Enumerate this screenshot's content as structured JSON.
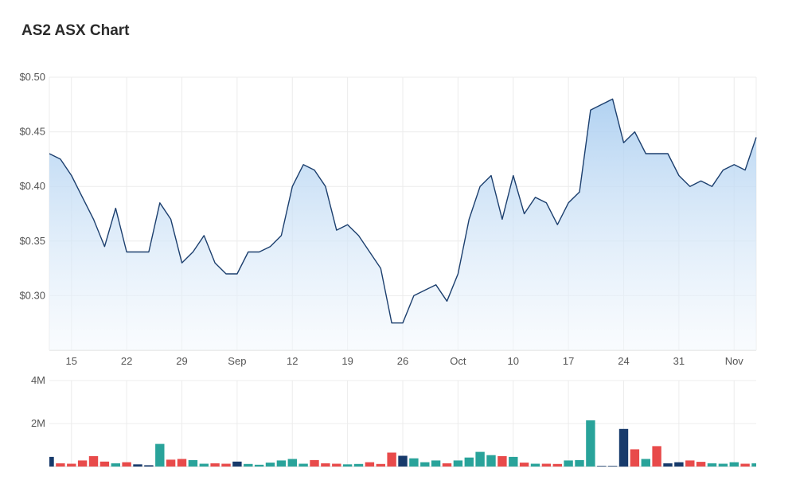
{
  "title": "AS2 ASX Chart",
  "colors": {
    "price_line": "#1c3f6e",
    "area_top": "#a9cdf0",
    "area_bottom": "#f3f8fd",
    "vol_up": "#29a39a",
    "vol_down": "#e84a4a",
    "vol_flat": "#173a6b",
    "grid": "#ececec"
  },
  "chart_data": [
    {
      "type": "area",
      "name": "price",
      "y_ticks": [
        "$0.50",
        "$0.45",
        "$0.40",
        "$0.35",
        "$0.30"
      ],
      "y_tick_values": [
        0.5,
        0.45,
        0.4,
        0.35,
        0.3
      ],
      "ylim": [
        0.25,
        0.5
      ],
      "x_ticks": [
        "15",
        "22",
        "29",
        "Sep",
        "12",
        "19",
        "26",
        "Oct",
        "10",
        "17",
        "24",
        "31",
        "Nov"
      ],
      "x_tick_index": [
        2,
        7,
        12,
        17,
        22,
        27,
        32,
        37,
        42,
        47,
        52,
        57,
        62
      ],
      "grid": true,
      "values": [
        0.43,
        0.425,
        0.41,
        0.39,
        0.37,
        0.345,
        0.38,
        0.34,
        0.34,
        0.34,
        0.385,
        0.37,
        0.33,
        0.34,
        0.355,
        0.33,
        0.32,
        0.32,
        0.34,
        0.34,
        0.345,
        0.355,
        0.4,
        0.42,
        0.415,
        0.4,
        0.36,
        0.365,
        0.355,
        0.34,
        0.325,
        0.275,
        0.275,
        0.3,
        0.305,
        0.31,
        0.295,
        0.32,
        0.37,
        0.4,
        0.41,
        0.37,
        0.41,
        0.375,
        0.39,
        0.385,
        0.365,
        0.385,
        0.395,
        0.47,
        0.475,
        0.48,
        0.44,
        0.45,
        0.43,
        0.43,
        0.43,
        0.41,
        0.4,
        0.405,
        0.4,
        0.415,
        0.42,
        0.415,
        0.445
      ]
    },
    {
      "type": "bar",
      "name": "volume",
      "y_ticks": [
        "4M",
        "2M"
      ],
      "y_tick_values": [
        4000000,
        2000000
      ],
      "ylim": [
        0,
        4000000
      ],
      "values": [
        450000,
        150000,
        130000,
        280000,
        480000,
        230000,
        150000,
        200000,
        100000,
        60000,
        1050000,
        320000,
        350000,
        300000,
        130000,
        150000,
        130000,
        230000,
        120000,
        80000,
        180000,
        280000,
        350000,
        130000,
        300000,
        150000,
        130000,
        100000,
        120000,
        200000,
        120000,
        650000,
        500000,
        380000,
        200000,
        280000,
        150000,
        280000,
        420000,
        680000,
        530000,
        480000,
        450000,
        180000,
        130000,
        130000,
        120000,
        280000,
        300000,
        2150000,
        30000,
        30000,
        1750000,
        800000,
        350000,
        950000,
        150000,
        200000,
        280000,
        220000,
        150000,
        130000,
        200000,
        130000,
        150000
      ],
      "direction": [
        "flat",
        "down",
        "down",
        "down",
        "down",
        "down",
        "up",
        "down",
        "flat",
        "flat",
        "up",
        "down",
        "down",
        "up",
        "up",
        "down",
        "down",
        "flat",
        "up",
        "up",
        "up",
        "up",
        "up",
        "up",
        "down",
        "down",
        "down",
        "up",
        "up",
        "down",
        "down",
        "down",
        "flat",
        "up",
        "up",
        "up",
        "down",
        "up",
        "up",
        "up",
        "up",
        "down",
        "up",
        "down",
        "up",
        "down",
        "down",
        "up",
        "up",
        "up",
        "flat",
        "flat",
        "flat",
        "down",
        "up",
        "down",
        "flat",
        "flat",
        "down",
        "down",
        "up",
        "up",
        "up",
        "down",
        "up"
      ]
    }
  ]
}
